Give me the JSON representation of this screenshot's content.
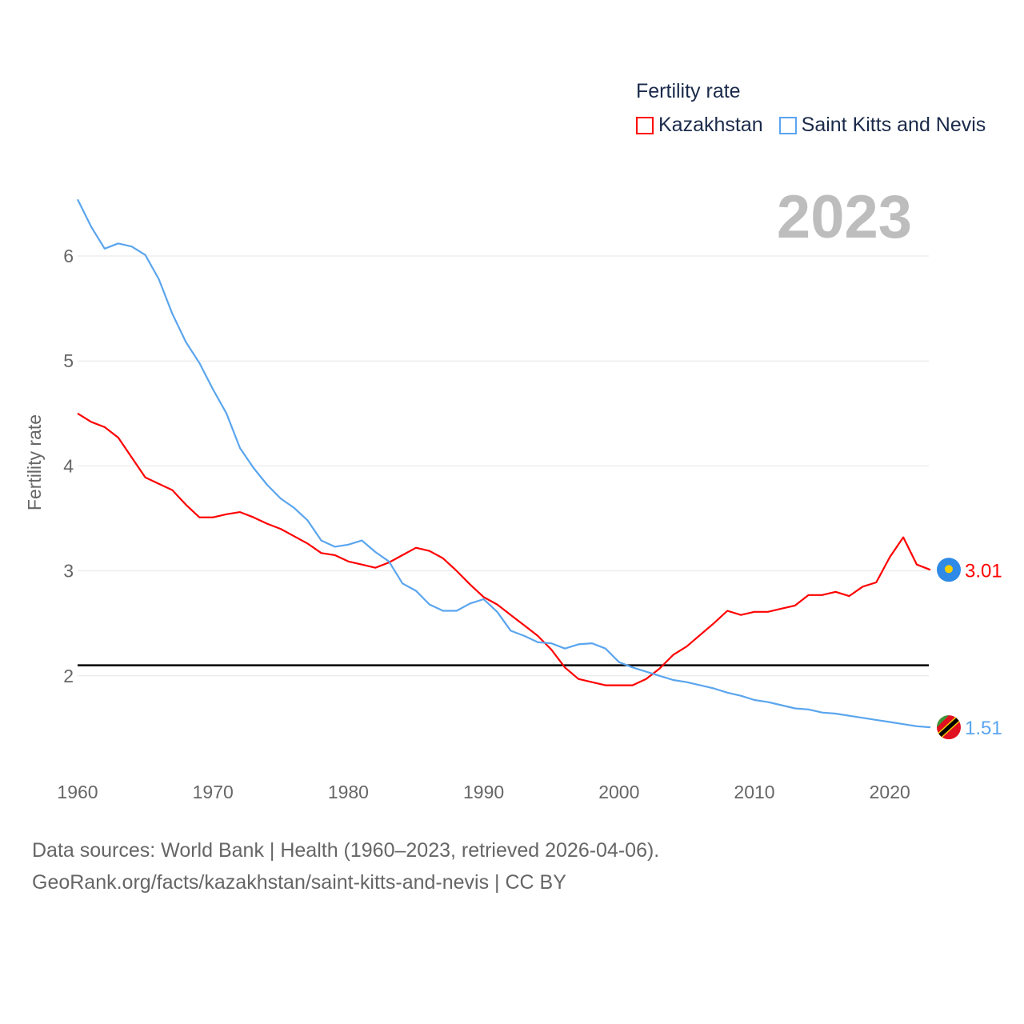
{
  "chart_data": {
    "type": "line",
    "title": "Fertility rate",
    "ylabel": "Fertility rate",
    "xlabel": "",
    "xlim": [
      1960,
      2023
    ],
    "ylim": [
      1.3,
      6.6
    ],
    "x_ticks": [
      1960,
      1970,
      1980,
      1990,
      2000,
      2010,
      2020
    ],
    "y_ticks": [
      2,
      3,
      4,
      5,
      6
    ],
    "reference_line": 2.1,
    "grid": true,
    "legend_position": "top-right",
    "year_label": "2023",
    "x": [
      1960,
      1961,
      1962,
      1963,
      1964,
      1965,
      1966,
      1967,
      1968,
      1969,
      1970,
      1971,
      1972,
      1973,
      1974,
      1975,
      1976,
      1977,
      1978,
      1979,
      1980,
      1981,
      1982,
      1983,
      1984,
      1985,
      1986,
      1987,
      1988,
      1989,
      1990,
      1991,
      1992,
      1993,
      1994,
      1995,
      1996,
      1997,
      1998,
      1999,
      2000,
      2001,
      2002,
      2003,
      2004,
      2005,
      2006,
      2007,
      2008,
      2009,
      2010,
      2011,
      2012,
      2013,
      2014,
      2015,
      2016,
      2017,
      2018,
      2019,
      2020,
      2021,
      2022,
      2023
    ],
    "series": [
      {
        "name": "Kazakhstan",
        "color": "#ff0000",
        "end_label": "3.01",
        "values": [
          4.5,
          4.42,
          4.37,
          4.27,
          4.08,
          3.89,
          3.83,
          3.77,
          3.63,
          3.51,
          3.51,
          3.54,
          3.56,
          3.51,
          3.45,
          3.4,
          3.33,
          3.26,
          3.17,
          3.15,
          3.09,
          3.06,
          3.03,
          3.08,
          3.15,
          3.22,
          3.19,
          3.12,
          3.0,
          2.87,
          2.75,
          2.68,
          2.58,
          2.48,
          2.38,
          2.25,
          2.08,
          1.97,
          1.94,
          1.91,
          1.91,
          1.91,
          1.97,
          2.07,
          2.2,
          2.28,
          2.39,
          2.5,
          2.62,
          2.58,
          2.61,
          2.61,
          2.64,
          2.67,
          2.77,
          2.77,
          2.8,
          2.76,
          2.85,
          2.89,
          3.13,
          3.32,
          3.06,
          3.01
        ]
      },
      {
        "name": "Saint Kitts and Nevis",
        "color": "#5aa5ee",
        "end_label": "1.51",
        "values": [
          6.54,
          6.28,
          6.07,
          6.12,
          6.09,
          6.01,
          5.78,
          5.45,
          5.18,
          4.98,
          4.73,
          4.5,
          4.17,
          3.98,
          3.82,
          3.69,
          3.6,
          3.48,
          3.29,
          3.23,
          3.25,
          3.29,
          3.18,
          3.09,
          2.88,
          2.81,
          2.68,
          2.62,
          2.62,
          2.69,
          2.73,
          2.61,
          2.43,
          2.38,
          2.32,
          2.31,
          2.26,
          2.3,
          2.31,
          2.26,
          2.13,
          2.08,
          2.04,
          2.0,
          1.96,
          1.94,
          1.91,
          1.88,
          1.84,
          1.81,
          1.77,
          1.75,
          1.72,
          1.69,
          1.68,
          1.65,
          1.64,
          1.62,
          1.6,
          1.58,
          1.56,
          1.54,
          1.52,
          1.51
        ]
      }
    ]
  },
  "footer": {
    "line1": "Data sources: World Bank | Health (1960–2023, retrieved 2026-04-06).",
    "line2": "GeoRank.org/facts/kazakhstan/saint-kitts-and-nevis | CC BY"
  }
}
